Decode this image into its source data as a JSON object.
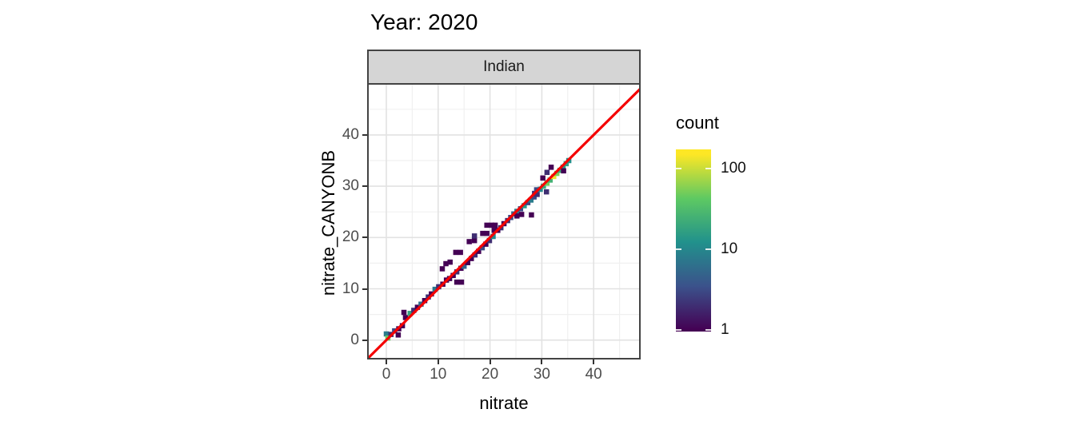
{
  "header": {
    "title": "Year: 2020"
  },
  "facet": {
    "label": "Indian"
  },
  "axes": {
    "x": {
      "label": "nitrate",
      "ticks": [
        0,
        10,
        20,
        30,
        40
      ],
      "minor_ticks": [
        5,
        15,
        25,
        35,
        45
      ],
      "range": [
        -3.6,
        49.1
      ]
    },
    "y": {
      "label": "nitrate_CANYONB",
      "ticks": [
        0,
        10,
        20,
        30,
        40
      ],
      "minor_ticks": [
        5,
        15,
        25,
        35,
        45
      ],
      "range": [
        -3.7,
        49.8
      ]
    }
  },
  "legend": {
    "title": "count",
    "ticks": [
      100,
      10,
      1
    ],
    "scale": "log10",
    "range": [
      1,
      172
    ],
    "colormap": "viridis",
    "colors": {
      "low": "#440154",
      "mid": "#21918c",
      "high": "#fde725"
    }
  },
  "colors": {
    "reference_line": "#f40000",
    "strip_background": "#d5d5d5",
    "panel_border": "#434343",
    "grid_major": "#e2e2e2",
    "grid_minor": "#f0f0f0",
    "tick_text": "#4d4d4d"
  },
  "chart_data": {
    "type": "heatmap",
    "subtype": "bin2d",
    "title": "Year: 2020",
    "facet": "Indian",
    "xlabel": "nitrate",
    "ylabel": "nitrate_CANYONB",
    "xlim": [
      -3.6,
      49.1
    ],
    "ylim": [
      -3.7,
      49.8
    ],
    "bin_size": 1,
    "count_scale": "log10",
    "count_max": 150,
    "reference_line": "y = x (red)",
    "legend_title": "count",
    "bins": [
      [
        0.0,
        1.2,
        8
      ],
      [
        0.3,
        0.4,
        45
      ],
      [
        0.9,
        1.1,
        2
      ],
      [
        1.6,
        1.8,
        3
      ],
      [
        2.3,
        1.0,
        1
      ],
      [
        2.4,
        2.2,
        1
      ],
      [
        3.1,
        2.8,
        1
      ],
      [
        3.7,
        4.4,
        1
      ],
      [
        3.4,
        5.4,
        1
      ],
      [
        4.6,
        5.2,
        18
      ],
      [
        5.3,
        5.8,
        2
      ],
      [
        6.0,
        6.4,
        1
      ],
      [
        6.7,
        7.0,
        6
      ],
      [
        7.4,
        7.7,
        1
      ],
      [
        8.1,
        8.4,
        2
      ],
      [
        8.7,
        9.0,
        1
      ],
      [
        9.4,
        9.9,
        7
      ],
      [
        10.1,
        10.4,
        2
      ],
      [
        10.9,
        10.9,
        1
      ],
      [
        11.6,
        11.7,
        1
      ],
      [
        12.2,
        12.0,
        1
      ],
      [
        12.9,
        12.6,
        1
      ],
      [
        13.6,
        13.3,
        2
      ],
      [
        14.4,
        14.0,
        1
      ],
      [
        15.0,
        14.4,
        5
      ],
      [
        15.7,
        15.1,
        1
      ],
      [
        16.4,
        15.9,
        1
      ],
      [
        17.1,
        16.6,
        2
      ],
      [
        17.8,
        17.3,
        1
      ],
      [
        18.5,
        18.0,
        3
      ],
      [
        19.2,
        18.7,
        1
      ],
      [
        19.9,
        19.4,
        2
      ],
      [
        20.6,
        20.2,
        10
      ],
      [
        21.5,
        21.4,
        1
      ],
      [
        22.1,
        21.9,
        2
      ],
      [
        22.7,
        22.7,
        1
      ],
      [
        23.4,
        23.3,
        2
      ],
      [
        24.0,
        23.9,
        3
      ],
      [
        24.6,
        24.6,
        5
      ],
      [
        25.2,
        25.1,
        8
      ],
      [
        25.9,
        25.6,
        3
      ],
      [
        26.6,
        26.2,
        14
      ],
      [
        27.3,
        26.8,
        3
      ],
      [
        27.9,
        27.3,
        8
      ],
      [
        28.5,
        27.9,
        3
      ],
      [
        29.1,
        28.4,
        2
      ],
      [
        13.6,
        11.3,
        1
      ],
      [
        14.5,
        11.3,
        1
      ],
      [
        25.2,
        24.2,
        1
      ],
      [
        26.1,
        24.5,
        1
      ],
      [
        28.0,
        24.4,
        1
      ],
      [
        30.9,
        28.9,
        2
      ],
      [
        10.8,
        13.9,
        1
      ],
      [
        11.5,
        14.9,
        1
      ],
      [
        12.3,
        15.2,
        1
      ],
      [
        13.4,
        17.1,
        1
      ],
      [
        14.3,
        17.1,
        1
      ],
      [
        16.0,
        19.2,
        1
      ],
      [
        17.0,
        19.4,
        1
      ],
      [
        17.0,
        20.3,
        2
      ],
      [
        18.6,
        20.8,
        1
      ],
      [
        19.4,
        20.8,
        1
      ],
      [
        19.4,
        22.4,
        1
      ],
      [
        20.3,
        22.4,
        1
      ],
      [
        21.0,
        22.4,
        1
      ],
      [
        20.8,
        21.4,
        1
      ],
      [
        28.6,
        28.6,
        2
      ],
      [
        29.0,
        29.3,
        3
      ],
      [
        29.7,
        29.4,
        10
      ],
      [
        30.3,
        30.0,
        20
      ],
      [
        31.0,
        30.6,
        50
      ],
      [
        31.6,
        31.2,
        25
      ],
      [
        32.3,
        31.9,
        135
      ],
      [
        32.9,
        32.5,
        55
      ],
      [
        33.5,
        33.1,
        22
      ],
      [
        34.1,
        33.7,
        14
      ],
      [
        34.7,
        34.4,
        16
      ],
      [
        35.2,
        35.0,
        12
      ],
      [
        30.2,
        31.6,
        1
      ],
      [
        31.0,
        32.7,
        2
      ],
      [
        31.8,
        33.7,
        1
      ],
      [
        34.2,
        33.0,
        1
      ]
    ]
  }
}
